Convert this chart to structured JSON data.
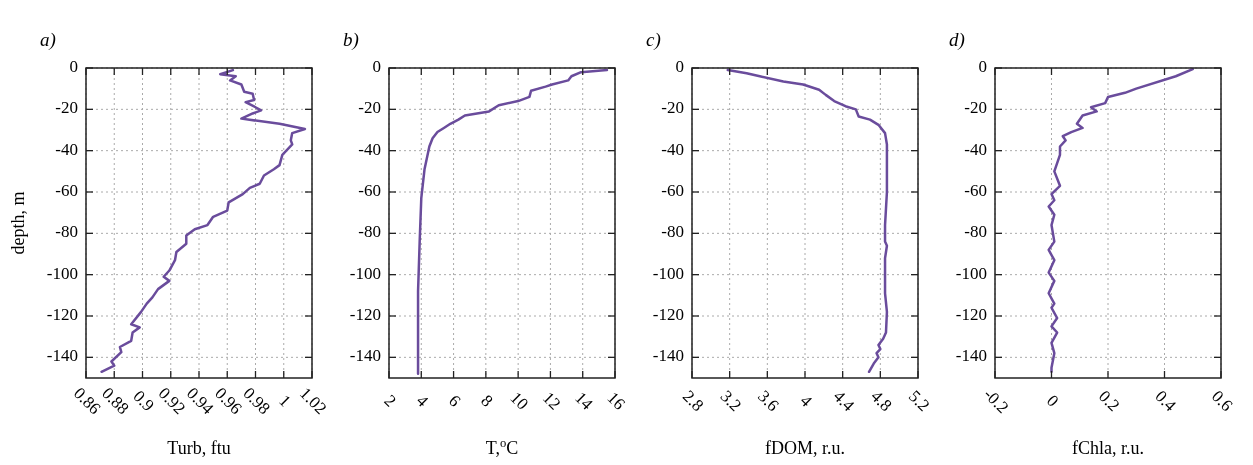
{
  "chart_data": [
    {
      "type": "line",
      "title": "a)",
      "xlabel": "Turb, ftu",
      "ylabel": "depth, m",
      "xlim": [
        0.86,
        1.02
      ],
      "xticks": [
        0.86,
        0.88,
        0.9,
        0.92,
        0.94,
        0.96,
        0.98,
        1,
        1.02
      ],
      "ylim": [
        -150,
        0
      ],
      "yticks": [
        0,
        -20,
        -40,
        -60,
        -80,
        -100,
        -120,
        -140
      ],
      "grid": true,
      "line_style": "solid",
      "series": [
        {
          "color": "#6a4c9c",
          "x": [
            0.964,
            0.955,
            0.966,
            0.962,
            0.97,
            0.972,
            0.978,
            0.979,
            0.973,
            0.98,
            0.984,
            0.978,
            0.97,
            0.997,
            1.015,
            1.006,
            1.005,
            1.006,
            0.999,
            0.997,
            0.993,
            0.986,
            0.983,
            0.976,
            0.971,
            0.961,
            0.96,
            0.95,
            0.946,
            0.937,
            0.931,
            0.931,
            0.924,
            0.923,
            0.919,
            0.915,
            0.919,
            0.911,
            0.907,
            0.903,
            0.899,
            0.892,
            0.898,
            0.893,
            0.892,
            0.884,
            0.885,
            0.878,
            0.88,
            0.871
          ],
          "values": [
            -1,
            -3,
            -4,
            -6,
            -8,
            -11.5,
            -12.5,
            -15.5,
            -16.5,
            -19,
            -20.5,
            -22,
            -24.5,
            -27,
            -29.5,
            -31.5,
            -35,
            -37,
            -42,
            -47,
            -49,
            -52,
            -56,
            -58,
            -61,
            -65,
            -69,
            -72,
            -76,
            -78,
            -81,
            -85,
            -89,
            -93,
            -98,
            -101,
            -103,
            -107,
            -111,
            -114,
            -118,
            -124,
            -125.5,
            -128,
            -132,
            -135,
            -137.5,
            -142,
            -144,
            -147
          ]
        }
      ]
    },
    {
      "type": "line",
      "title": "b)",
      "xlabel": "T,$^{o}$C",
      "xlim": [
        2,
        16
      ],
      "xticks": [
        2,
        4,
        6,
        8,
        10,
        12,
        14,
        16
      ],
      "ylim": [
        -150,
        0
      ],
      "yticks": [
        0,
        -20,
        -40,
        -60,
        -80,
        -100,
        -120,
        -140
      ],
      "grid": true,
      "line_style": "solid",
      "series": [
        {
          "color": "#6a4c9c",
          "x": [
            15.5,
            13.9,
            13.3,
            13.1,
            12.1,
            11.7,
            10.8,
            10.7,
            10.0,
            8.8,
            8.2,
            6.7,
            6.3,
            5.8,
            5.4,
            5.0,
            4.7,
            4.5,
            4.2,
            4.0,
            3.9,
            3.8,
            3.8
          ],
          "values": [
            -1,
            -2,
            -4,
            -6,
            -8,
            -9,
            -11,
            -14,
            -16,
            -18,
            -21,
            -23,
            -25,
            -27,
            -29,
            -31,
            -34,
            -38,
            -49,
            -63,
            -84,
            -108,
            -148
          ]
        }
      ]
    },
    {
      "type": "line",
      "title": "c)",
      "xlabel": "fDOM, r.u.",
      "xlim": [
        2.8,
        5.2
      ],
      "xticks": [
        2.8,
        3.2,
        3.6,
        4,
        4.4,
        4.8,
        5.2
      ],
      "ylim": [
        -150,
        0
      ],
      "yticks": [
        0,
        -20,
        -40,
        -60,
        -80,
        -100,
        -120,
        -140
      ],
      "grid": true,
      "line_style": "solid",
      "series": [
        {
          "color": "#6a4c9c",
          "x": [
            3.18,
            3.38,
            3.52,
            3.77,
            3.98,
            4.15,
            4.22,
            4.31,
            4.43,
            4.54,
            4.57,
            4.69,
            4.78,
            4.85,
            4.87,
            4.87,
            4.85,
            4.85,
            4.87,
            4.85,
            4.85,
            4.87,
            4.86,
            4.83,
            4.78,
            4.8,
            4.76,
            4.78,
            4.73,
            4.68
          ],
          "values": [
            -1,
            -2.5,
            -4,
            -6.5,
            -8,
            -10.5,
            -13,
            -16,
            -18.5,
            -20,
            -23.5,
            -25,
            -27.5,
            -31.5,
            -37,
            -60,
            -76,
            -84,
            -86,
            -92,
            -109,
            -118,
            -128,
            -131,
            -134,
            -136,
            -138,
            -140,
            -143,
            -147
          ]
        }
      ]
    },
    {
      "type": "line",
      "title": "d)",
      "xlabel": "fChla, r.u.",
      "xlim": [
        -0.2,
        0.6
      ],
      "xticks": [
        -0.2,
        0,
        0.2,
        0.4,
        0.6
      ],
      "ylim": [
        -150,
        0
      ],
      "yticks": [
        0,
        -20,
        -40,
        -60,
        -80,
        -100,
        -120,
        -140
      ],
      "grid": true,
      "line_style": "solid",
      "series": [
        {
          "color": "#6a4c9c",
          "x": [
            0.5,
            0.44,
            0.3,
            0.26,
            0.2,
            0.19,
            0.14,
            0.16,
            0.11,
            0.09,
            0.11,
            0.07,
            0.04,
            0.05,
            0.03,
            0.03,
            0.02,
            0.01,
            0.03,
            0.0,
            0.01,
            -0.01,
            0.01,
            0.0,
            0.01,
            -0.01,
            0.01,
            -0.01,
            0.01,
            -0.01,
            0.01,
            0.0,
            0.02,
            0.0,
            0.02,
            0.0,
            0.01,
            0.0,
            0.0
          ],
          "values": [
            -0.5,
            -4,
            -10,
            -12,
            -14,
            -17,
            -19,
            -21,
            -23,
            -27,
            -29,
            -31,
            -33,
            -35,
            -38,
            -42,
            -46,
            -50,
            -57,
            -61,
            -64,
            -67,
            -71,
            -76,
            -84,
            -88,
            -93,
            -99,
            -103,
            -109,
            -114,
            -116,
            -121,
            -125,
            -128,
            -133,
            -138,
            -145,
            -147
          ]
        }
      ]
    }
  ]
}
